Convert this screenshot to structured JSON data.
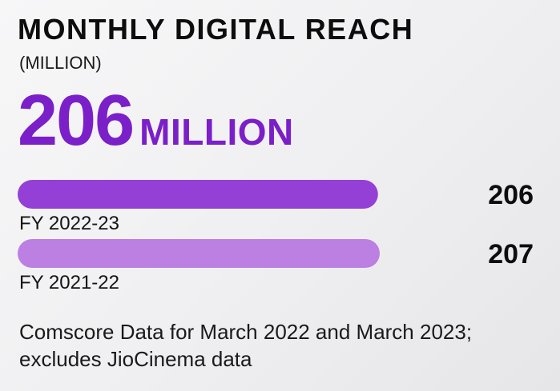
{
  "title": "MONTHLY DIGITAL REACH",
  "subtitle": "(MILLION)",
  "headline": {
    "value": "206",
    "unit": "MILLION"
  },
  "colors": {
    "accent": "#7b1fc8",
    "current_bar": "#9440d6",
    "previous_bar": "#bb80e2"
  },
  "chart_data": {
    "type": "bar",
    "orientation": "horizontal",
    "categories": [
      "FY 2022-23",
      "FY 2021-22"
    ],
    "values": [
      206,
      207
    ],
    "xlim": [
      0,
      207
    ],
    "grid": false,
    "axes_visible": false
  },
  "footnote": "Comscore Data for March 2022 and March 2023; excludes JioCinema data"
}
